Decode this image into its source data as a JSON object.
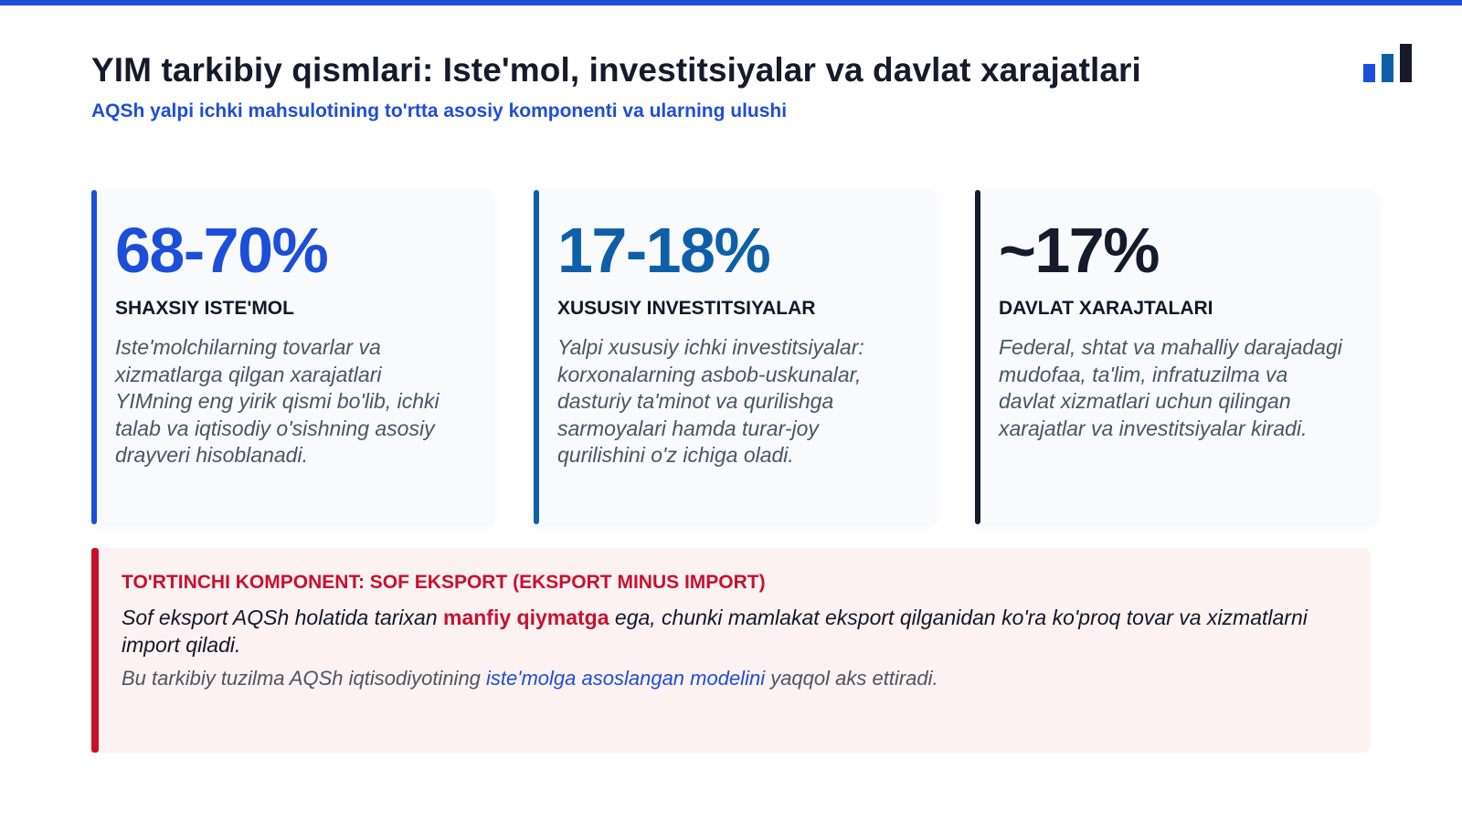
{
  "header": {
    "title": "YIM tarkibiy qismlari: Iste'mol, investitsiyalar va davlat xarajatlari",
    "subtitle": "AQSh yalpi ichki mahsulotining to'rtta asosiy komponenti va ularning ulushi",
    "logo_icon": "bar-chart-icon"
  },
  "colors": {
    "primary_blue": "#1d4ed8",
    "teal_blue": "#0e5fa8",
    "navy": "#161a2b",
    "red": "#c8102e"
  },
  "cards": [
    {
      "stat": "68-70%",
      "label": "SHAXSIY ISTE'MOL",
      "description": "Iste'molchilarning tovarlar va xizmatlarga qilgan xarajatlari YIMning eng yirik qismi bo'lib, ichki talab va iqtisodiy o'sishning asosiy drayveri hisoblanadi."
    },
    {
      "stat": "17-18%",
      "label": "XUSUSIY INVESTITSIYALAR",
      "description": "Yalpi xususiy ichki investitsiyalar: korxonalarning asbob-uskunalar, dasturiy ta'minot va qurilishga sarmoyalari hamda turar-joy qurilishini o'z ichiga oladi."
    },
    {
      "stat": "~17%",
      "label": "DAVLAT XARAJTALARI",
      "description": "Federal, shtat va mahalliy darajadagi mudofaa, ta'lim, infratuzilma va davlat xizmatlari uchun qilingan xarajatlar va investitsiyalar kiradi."
    }
  ],
  "note": {
    "heading": "TO'RTINCHI KOMPONENT: SOF EKSPORT (EKSPORT MINUS IMPORT)",
    "body_before": "Sof eksport AQSh holatida tarixan ",
    "body_highlight": "manfiy qiymatga",
    "body_after": " ega, chunki mamlakat eksport qilganidan ko'ra ko'proq tovar va xizmatlarni import qiladi.",
    "footer_before": "Bu tarkibiy tuzilma AQSh iqtisodiyotining ",
    "footer_link": "iste'molga asoslangan modelini",
    "footer_after": " yaqqol aks ettiradi."
  }
}
